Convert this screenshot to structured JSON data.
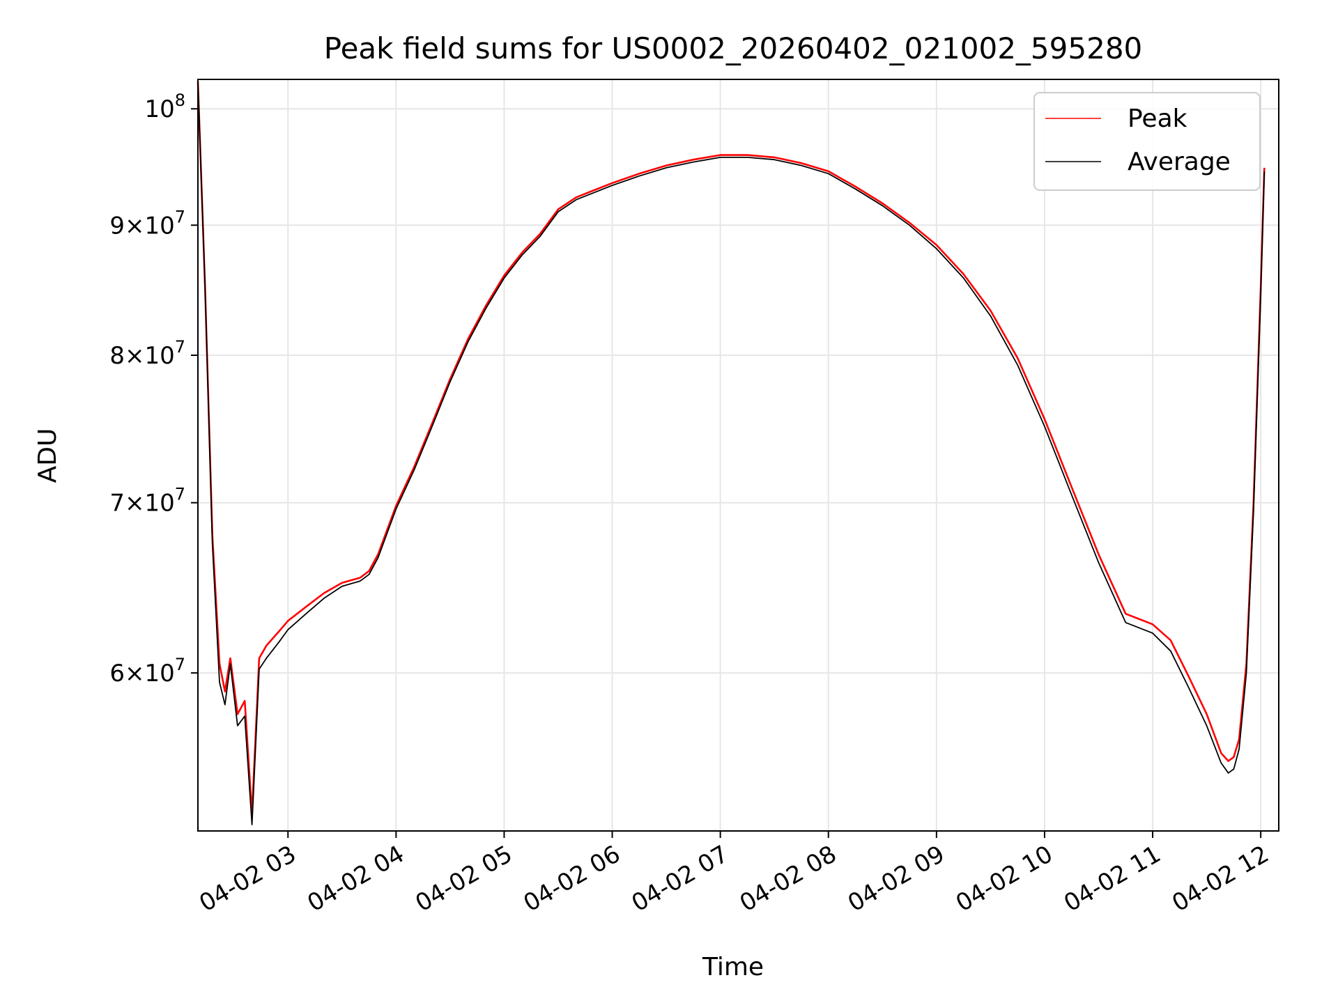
{
  "chart_data": {
    "type": "line",
    "title": "Peak field sums for US0002_20260402_021002_595280",
    "xlabel": "Time",
    "ylabel": "ADU",
    "y_scale": "log",
    "xlim": [
      "2026-04-02T02:10:00",
      "2026-04-02T12:10:00"
    ],
    "ylim": [
      52000000,
      102700000
    ],
    "x_ticks": [
      {
        "time": "2026-04-02T03:00",
        "label": "04-02 03"
      },
      {
        "time": "2026-04-02T04:00",
        "label": "04-02 04"
      },
      {
        "time": "2026-04-02T05:00",
        "label": "04-02 05"
      },
      {
        "time": "2026-04-02T06:00",
        "label": "04-02 06"
      },
      {
        "time": "2026-04-02T07:00",
        "label": "04-02 07"
      },
      {
        "time": "2026-04-02T08:00",
        "label": "04-02 08"
      },
      {
        "time": "2026-04-02T09:00",
        "label": "04-02 09"
      },
      {
        "time": "2026-04-02T10:00",
        "label": "04-02 10"
      },
      {
        "time": "2026-04-02T11:00",
        "label": "04-02 11"
      },
      {
        "time": "2026-04-02T12:00",
        "label": "04-02 12"
      }
    ],
    "y_ticks": [
      {
        "value": 60000000,
        "mant": "6",
        "exp": "7"
      },
      {
        "value": 70000000,
        "mant": "7",
        "exp": "7"
      },
      {
        "value": 80000000,
        "mant": "8",
        "exp": "7"
      },
      {
        "value": 90000000,
        "mant": "9",
        "exp": "7"
      },
      {
        "value": 100000000,
        "mant": "",
        "exp": "8"
      }
    ],
    "tick_base": "10",
    "times_sign": "×",
    "grid": true,
    "legend_position": "top-right",
    "series": [
      {
        "name": "Peak",
        "color": "#ff0000",
        "points": [
          [
            "2026-04-02T02:10",
            102500000
          ],
          [
            "2026-04-02T02:14",
            85000000
          ],
          [
            "2026-04-02T02:18",
            68000000
          ],
          [
            "2026-04-02T02:22",
            60500000
          ],
          [
            "2026-04-02T02:25",
            59000000
          ],
          [
            "2026-04-02T02:28",
            60800000
          ],
          [
            "2026-04-02T02:32",
            57800000
          ],
          [
            "2026-04-02T02:36",
            58500000
          ],
          [
            "2026-04-02T02:40",
            52800000
          ],
          [
            "2026-04-02T02:44",
            60800000
          ],
          [
            "2026-04-02T02:48",
            61500000
          ],
          [
            "2026-04-02T02:55",
            62300000
          ],
          [
            "2026-04-02T03:00",
            62900000
          ],
          [
            "2026-04-02T03:10",
            63700000
          ],
          [
            "2026-04-02T03:20",
            64500000
          ],
          [
            "2026-04-02T03:30",
            65100000
          ],
          [
            "2026-04-02T03:40",
            65400000
          ],
          [
            "2026-04-02T03:45",
            65800000
          ],
          [
            "2026-04-02T03:50",
            66800000
          ],
          [
            "2026-04-02T04:00",
            69800000
          ],
          [
            "2026-04-02T04:10",
            72300000
          ],
          [
            "2026-04-02T04:20",
            75200000
          ],
          [
            "2026-04-02T04:30",
            78300000
          ],
          [
            "2026-04-02T04:40",
            81200000
          ],
          [
            "2026-04-02T04:50",
            83700000
          ],
          [
            "2026-04-02T05:00",
            86000000
          ],
          [
            "2026-04-02T05:10",
            87800000
          ],
          [
            "2026-04-02T05:20",
            89300000
          ],
          [
            "2026-04-02T05:30",
            91300000
          ],
          [
            "2026-04-02T05:40",
            92300000
          ],
          [
            "2026-04-02T05:50",
            92900000
          ],
          [
            "2026-04-02T06:00",
            93500000
          ],
          [
            "2026-04-02T06:15",
            94300000
          ],
          [
            "2026-04-02T06:30",
            95000000
          ],
          [
            "2026-04-02T06:45",
            95500000
          ],
          [
            "2026-04-02T07:00",
            95900000
          ],
          [
            "2026-04-02T07:15",
            95900000
          ],
          [
            "2026-04-02T07:30",
            95700000
          ],
          [
            "2026-04-02T07:45",
            95200000
          ],
          [
            "2026-04-02T08:00",
            94500000
          ],
          [
            "2026-04-02T08:15",
            93200000
          ],
          [
            "2026-04-02T08:30",
            91800000
          ],
          [
            "2026-04-02T08:45",
            90200000
          ],
          [
            "2026-04-02T09:00",
            88400000
          ],
          [
            "2026-04-02T09:15",
            86100000
          ],
          [
            "2026-04-02T09:30",
            83300000
          ],
          [
            "2026-04-02T09:45",
            79800000
          ],
          [
            "2026-04-02T10:00",
            75500000
          ],
          [
            "2026-04-02T10:15",
            71000000
          ],
          [
            "2026-04-02T10:30",
            66800000
          ],
          [
            "2026-04-02T10:45",
            63300000
          ],
          [
            "2026-04-02T11:00",
            62700000
          ],
          [
            "2026-04-02T11:10",
            61800000
          ],
          [
            "2026-04-02T11:20",
            59800000
          ],
          [
            "2026-04-02T11:30",
            57800000
          ],
          [
            "2026-04-02T11:38",
            55800000
          ],
          [
            "2026-04-02T11:42",
            55400000
          ],
          [
            "2026-04-02T11:45",
            55600000
          ],
          [
            "2026-04-02T11:48",
            56500000
          ],
          [
            "2026-04-02T11:52",
            60500000
          ],
          [
            "2026-04-02T11:56",
            70000000
          ],
          [
            "2026-04-02T12:00",
            85000000
          ],
          [
            "2026-04-02T12:02",
            94800000
          ]
        ]
      },
      {
        "name": "Average",
        "color": "#000000",
        "points": [
          [
            "2026-04-02T02:10",
            102500000
          ],
          [
            "2026-04-02T02:14",
            85000000
          ],
          [
            "2026-04-02T02:18",
            67500000
          ],
          [
            "2026-04-02T02:22",
            59500000
          ],
          [
            "2026-04-02T02:25",
            58300000
          ],
          [
            "2026-04-02T02:28",
            60500000
          ],
          [
            "2026-04-02T02:32",
            57200000
          ],
          [
            "2026-04-02T02:36",
            57700000
          ],
          [
            "2026-04-02T02:40",
            52300000
          ],
          [
            "2026-04-02T02:44",
            60200000
          ],
          [
            "2026-04-02T02:48",
            60800000
          ],
          [
            "2026-04-02T02:55",
            61700000
          ],
          [
            "2026-04-02T03:00",
            62400000
          ],
          [
            "2026-04-02T03:10",
            63300000
          ],
          [
            "2026-04-02T03:20",
            64200000
          ],
          [
            "2026-04-02T03:30",
            64900000
          ],
          [
            "2026-04-02T03:40",
            65200000
          ],
          [
            "2026-04-02T03:45",
            65600000
          ],
          [
            "2026-04-02T03:50",
            66600000
          ],
          [
            "2026-04-02T04:00",
            69600000
          ],
          [
            "2026-04-02T04:10",
            72100000
          ],
          [
            "2026-04-02T04:20",
            75000000
          ],
          [
            "2026-04-02T04:30",
            78100000
          ],
          [
            "2026-04-02T04:40",
            81000000
          ],
          [
            "2026-04-02T04:50",
            83500000
          ],
          [
            "2026-04-02T05:00",
            85800000
          ],
          [
            "2026-04-02T05:10",
            87600000
          ],
          [
            "2026-04-02T05:20",
            89100000
          ],
          [
            "2026-04-02T05:30",
            91100000
          ],
          [
            "2026-04-02T05:40",
            92100000
          ],
          [
            "2026-04-02T05:50",
            92700000
          ],
          [
            "2026-04-02T06:00",
            93300000
          ],
          [
            "2026-04-02T06:15",
            94100000
          ],
          [
            "2026-04-02T06:30",
            94800000
          ],
          [
            "2026-04-02T06:45",
            95300000
          ],
          [
            "2026-04-02T07:00",
            95700000
          ],
          [
            "2026-04-02T07:15",
            95700000
          ],
          [
            "2026-04-02T07:30",
            95500000
          ],
          [
            "2026-04-02T07:45",
            95000000
          ],
          [
            "2026-04-02T08:00",
            94300000
          ],
          [
            "2026-04-02T08:15",
            93000000
          ],
          [
            "2026-04-02T08:30",
            91600000
          ],
          [
            "2026-04-02T08:45",
            90000000
          ],
          [
            "2026-04-02T09:00",
            88100000
          ],
          [
            "2026-04-02T09:15",
            85800000
          ],
          [
            "2026-04-02T09:30",
            82900000
          ],
          [
            "2026-04-02T09:45",
            79300000
          ],
          [
            "2026-04-02T10:00",
            75000000
          ],
          [
            "2026-04-02T10:15",
            70500000
          ],
          [
            "2026-04-02T10:30",
            66300000
          ],
          [
            "2026-04-02T10:45",
            62800000
          ],
          [
            "2026-04-02T11:00",
            62200000
          ],
          [
            "2026-04-02T11:10",
            61200000
          ],
          [
            "2026-04-02T11:20",
            59200000
          ],
          [
            "2026-04-02T11:30",
            57200000
          ],
          [
            "2026-04-02T11:38",
            55300000
          ],
          [
            "2026-04-02T11:42",
            54800000
          ],
          [
            "2026-04-02T11:45",
            55000000
          ],
          [
            "2026-04-02T11:48",
            56000000
          ],
          [
            "2026-04-02T11:52",
            60000000
          ],
          [
            "2026-04-02T11:56",
            69500000
          ],
          [
            "2026-04-02T12:00",
            84500000
          ],
          [
            "2026-04-02T12:02",
            94500000
          ]
        ]
      }
    ]
  }
}
